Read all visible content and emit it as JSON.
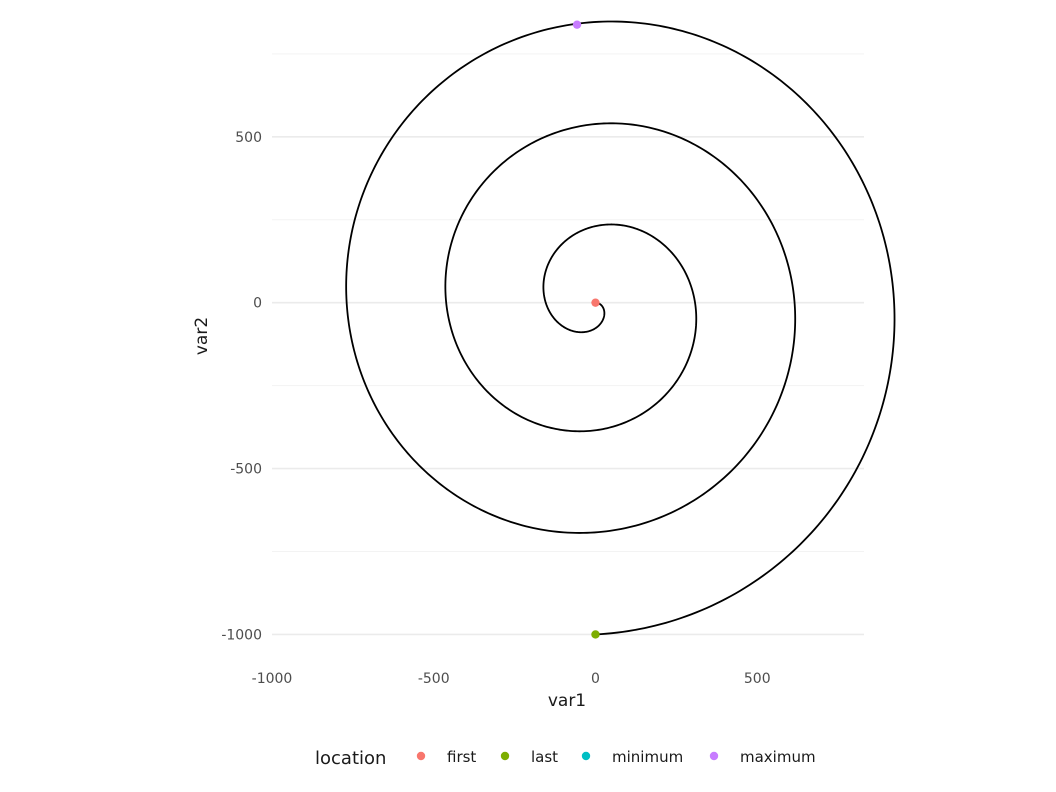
{
  "chart_data": {
    "type": "line",
    "subtype": "parametric-spiral",
    "xlabel": "var1",
    "ylabel": "var2",
    "xlim": [
      -1000,
      830
    ],
    "ylim": [
      -1065,
      840
    ],
    "x_ticks": [
      {
        "value": -1000,
        "label": "-1000"
      },
      {
        "value": -500,
        "label": "-500"
      },
      {
        "value": 0,
        "label": "0"
      },
      {
        "value": 500,
        "label": "500"
      }
    ],
    "y_ticks": [
      {
        "value": -1000,
        "label": "-1000"
      },
      {
        "value": -500,
        "label": "-500"
      },
      {
        "value": 0,
        "label": "0"
      },
      {
        "value": 500,
        "label": "500"
      }
    ],
    "grid": "horizontal-only",
    "spiral": {
      "turns": 3,
      "r_start": 0,
      "r_end": 1000,
      "angle_start_deg": 0,
      "angle_end_deg": -1170,
      "color": "#000000"
    },
    "points": [
      {
        "location": "first",
        "x": 0,
        "y": 0
      },
      {
        "location": "last",
        "x": 0,
        "y": -1000
      },
      {
        "location": "maximum",
        "x": -57,
        "y": 838
      }
    ],
    "legend": {
      "title": "location",
      "position": "bottom",
      "items": [
        {
          "label": "first",
          "color": "#F8766D"
        },
        {
          "label": "last",
          "color": "#7CAE00"
        },
        {
          "label": "minimum",
          "color": "#00BFC4"
        },
        {
          "label": "maximum",
          "color": "#C77CFF"
        }
      ]
    }
  }
}
